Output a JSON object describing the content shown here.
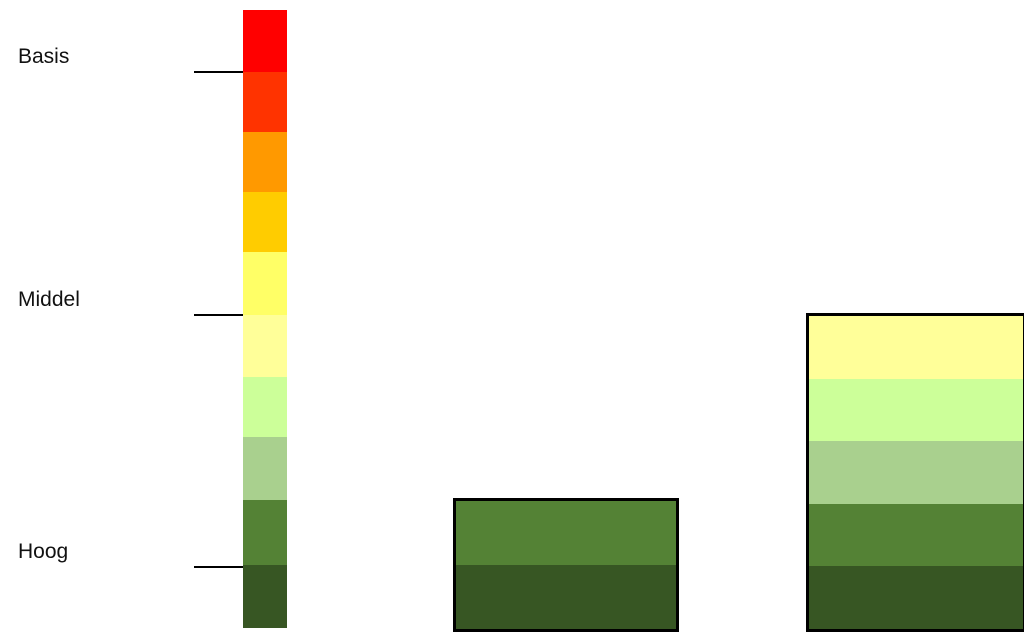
{
  "levels": [
    {
      "label": "Basis"
    },
    {
      "label": "Middel"
    },
    {
      "label": "Hoog"
    }
  ],
  "scale": {
    "bands": [
      {
        "color": "#FF0000"
      },
      {
        "color": "#FF3300"
      },
      {
        "color": "#FF9900"
      },
      {
        "color": "#FFCC00"
      },
      {
        "color": "#FFFF66"
      },
      {
        "color": "#FFFF99"
      },
      {
        "color": "#CCFF99"
      },
      {
        "color": "#A9D08E"
      },
      {
        "color": "#548235"
      },
      {
        "color": "#375623"
      }
    ]
  },
  "blocks": [
    {
      "bands": [
        {
          "color": "#548235"
        },
        {
          "color": "#375623"
        }
      ]
    },
    {
      "bands": [
        {
          "color": "#FFFF99"
        },
        {
          "color": "#CCFF99"
        },
        {
          "color": "#A9D08E"
        },
        {
          "color": "#548235"
        },
        {
          "color": "#375623"
        }
      ]
    }
  ]
}
